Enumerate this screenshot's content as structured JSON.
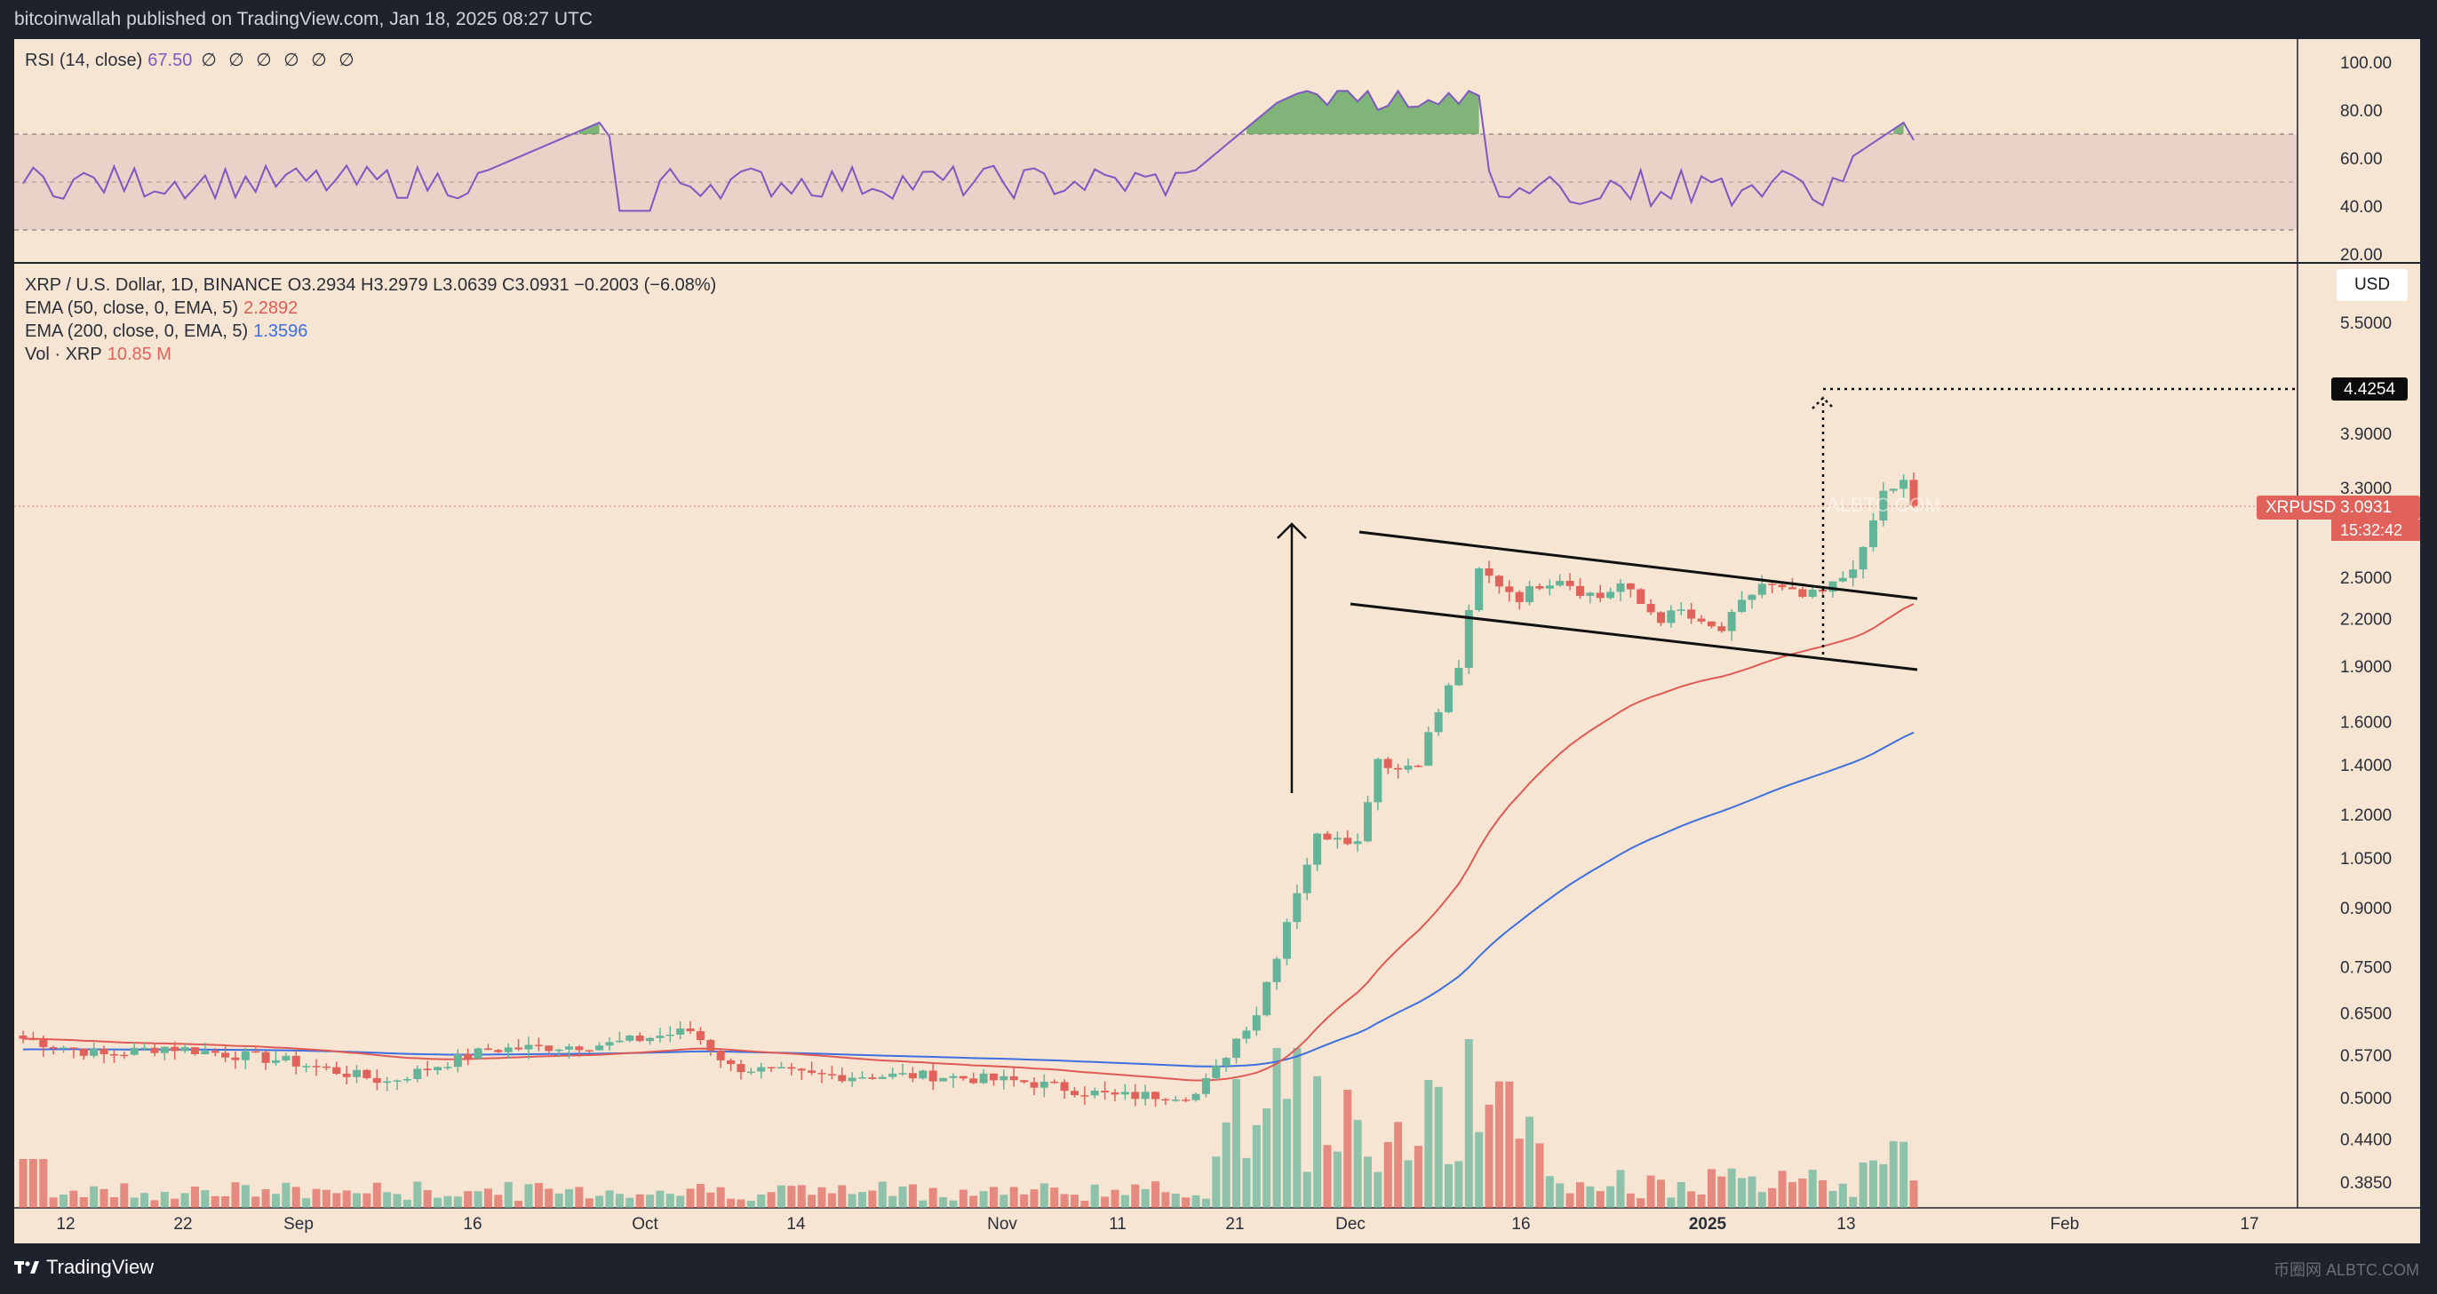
{
  "header": {
    "published": "bitcoinwallah published on TradingView.com, Jan 18, 2025 08:27 UTC"
  },
  "rsi": {
    "label": "RSI (14, close)",
    "value": "67.50",
    "dots": "∅ ∅ ∅ ∅ ∅ ∅",
    "axis": [
      "100.00",
      "80.00",
      "60.00",
      "40.00",
      "20.00"
    ]
  },
  "main": {
    "symbol_line": "XRP / U.S. Dollar, 1D, BINANCE",
    "ohlc": "O3.2934  H3.2979  L3.0639  C3.0931  −0.2003 (−6.08%)",
    "ema50_label": "EMA (50, close, 0, EMA, 5)",
    "ema50_value": "2.2892",
    "ema200_label": "EMA (200, close, 0, EMA, 5)",
    "ema200_value": "1.3596",
    "vol_label": "Vol · XRP",
    "vol_value": "10.85 M",
    "currency_button": "USD",
    "price_axis": [
      "5.5000",
      "3.9000",
      "3.3000",
      "2.5000",
      "2.2000",
      "1.9000",
      "1.6000",
      "1.4000",
      "1.2000",
      "1.0500",
      "0.9000",
      "0.7500",
      "0.6500",
      "0.5700",
      "0.5000",
      "0.4400",
      "0.3850"
    ],
    "target_price": "4.4254",
    "symbol_tag": "XRPUSD",
    "last_price": "3.0931",
    "countdown": "15:32:42",
    "watermark": "ALBTC.COM"
  },
  "time_axis": [
    "12",
    "22",
    "Sep",
    "16",
    "Oct",
    "14",
    "Nov",
    "11",
    "21",
    "Dec",
    "16",
    "2025",
    "13",
    "Feb",
    "17"
  ],
  "footer": {
    "brand": "TradingView",
    "corner_mark": "币圈网 ALBTC.COM"
  },
  "colors": {
    "up": "#64b49a",
    "down": "#e0625a",
    "ema50": "#e05a55",
    "ema200": "#3d6fe0",
    "rsi": "#7e57c2",
    "background": "#f6e5d2"
  }
}
